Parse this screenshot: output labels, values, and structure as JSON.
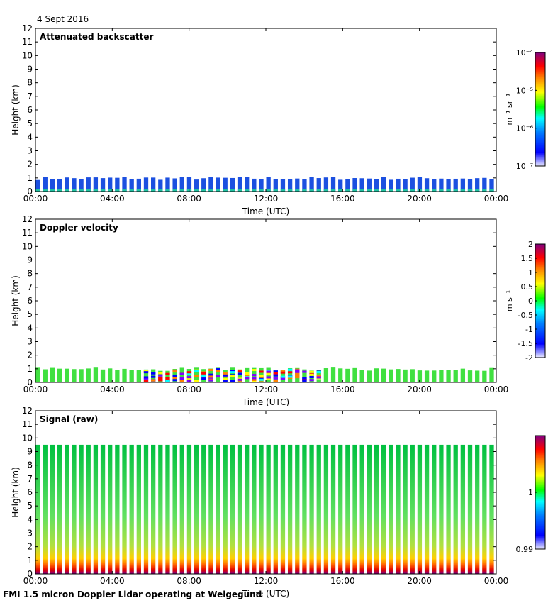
{
  "header": {
    "date": "4 Sept 2016"
  },
  "footer": {
    "caption": "FMI 1.5 micron Doppler Lidar operating at Welgegund"
  },
  "colors": {
    "jet": [
      "#000080",
      "#0000ff",
      "#0080ff",
      "#00ffff",
      "#80ff80",
      "#ffff00",
      "#ff8000",
      "#ff0000",
      "#800000"
    ],
    "bar_top": "#800080",
    "bar_bottom": "#d0d0ff"
  },
  "chart_data": [
    {
      "type": "heatmap",
      "title": "Attenuated backscatter",
      "xlabel": "Time (UTC)",
      "ylabel": "Height (km)",
      "xlim": [
        0,
        24
      ],
      "ylim": [
        0,
        12
      ],
      "x_ticks": [
        "00:00",
        "04:00",
        "08:00",
        "12:00",
        "16:00",
        "20:00",
        "00:00"
      ],
      "y_ticks": [
        "0",
        "1",
        "2",
        "3",
        "4",
        "5",
        "6",
        "7",
        "8",
        "9",
        "10",
        "11",
        "12"
      ],
      "colorbar": {
        "units": "m⁻¹ sr⁻¹",
        "scale": "log",
        "range": [
          1e-07,
          0.0001
        ],
        "ticks": [
          "10⁻⁷",
          "10⁻⁶",
          "10⁻⁵",
          "10⁻⁴"
        ]
      },
      "signal_top_km": 1.0,
      "dominant_value": "≈1e-6 (blue), near-surface ≈1e-5 (green)"
    },
    {
      "type": "heatmap",
      "title": "Doppler velocity",
      "xlabel": "Time (UTC)",
      "ylabel": "Height (km)",
      "xlim": [
        0,
        24
      ],
      "ylim": [
        0,
        12
      ],
      "x_ticks": [
        "00:00",
        "04:00",
        "08:00",
        "12:00",
        "16:00",
        "20:00",
        "00:00"
      ],
      "y_ticks": [
        "0",
        "1",
        "2",
        "3",
        "4",
        "5",
        "6",
        "7",
        "8",
        "9",
        "10",
        "11",
        "12"
      ],
      "colorbar": {
        "units": "m s⁻¹",
        "scale": "linear",
        "range": [
          -2,
          2
        ],
        "ticks": [
          "-2",
          "-1.5",
          "-1",
          "-0.5",
          "0",
          "0.5",
          "1",
          "1.5",
          "2"
        ]
      },
      "signal_top_km": 1.0,
      "dominant_value": "≈0 (green), mixed values 06:00–15:00"
    },
    {
      "type": "heatmap",
      "title": "Signal (raw)",
      "xlabel": "Time (UTC)",
      "ylabel": "Height (km)",
      "xlim": [
        0,
        24
      ],
      "ylim": [
        0,
        12
      ],
      "x_ticks": [
        "00:00",
        "04:00",
        "08:00",
        "12:00",
        "16:00",
        "20:00",
        "00:00"
      ],
      "y_ticks": [
        "0",
        "1",
        "2",
        "3",
        "4",
        "5",
        "6",
        "7",
        "8",
        "9",
        "10",
        "11",
        "12"
      ],
      "colorbar": {
        "units": "",
        "scale": "linear",
        "range": [
          0.99,
          1.01
        ],
        "ticks": [
          "0.99",
          "1"
        ]
      },
      "signal_top_km": 9.5,
      "dominant_value": "≈1.0 (green) aloft, high (purple/red) below 2 km"
    }
  ]
}
